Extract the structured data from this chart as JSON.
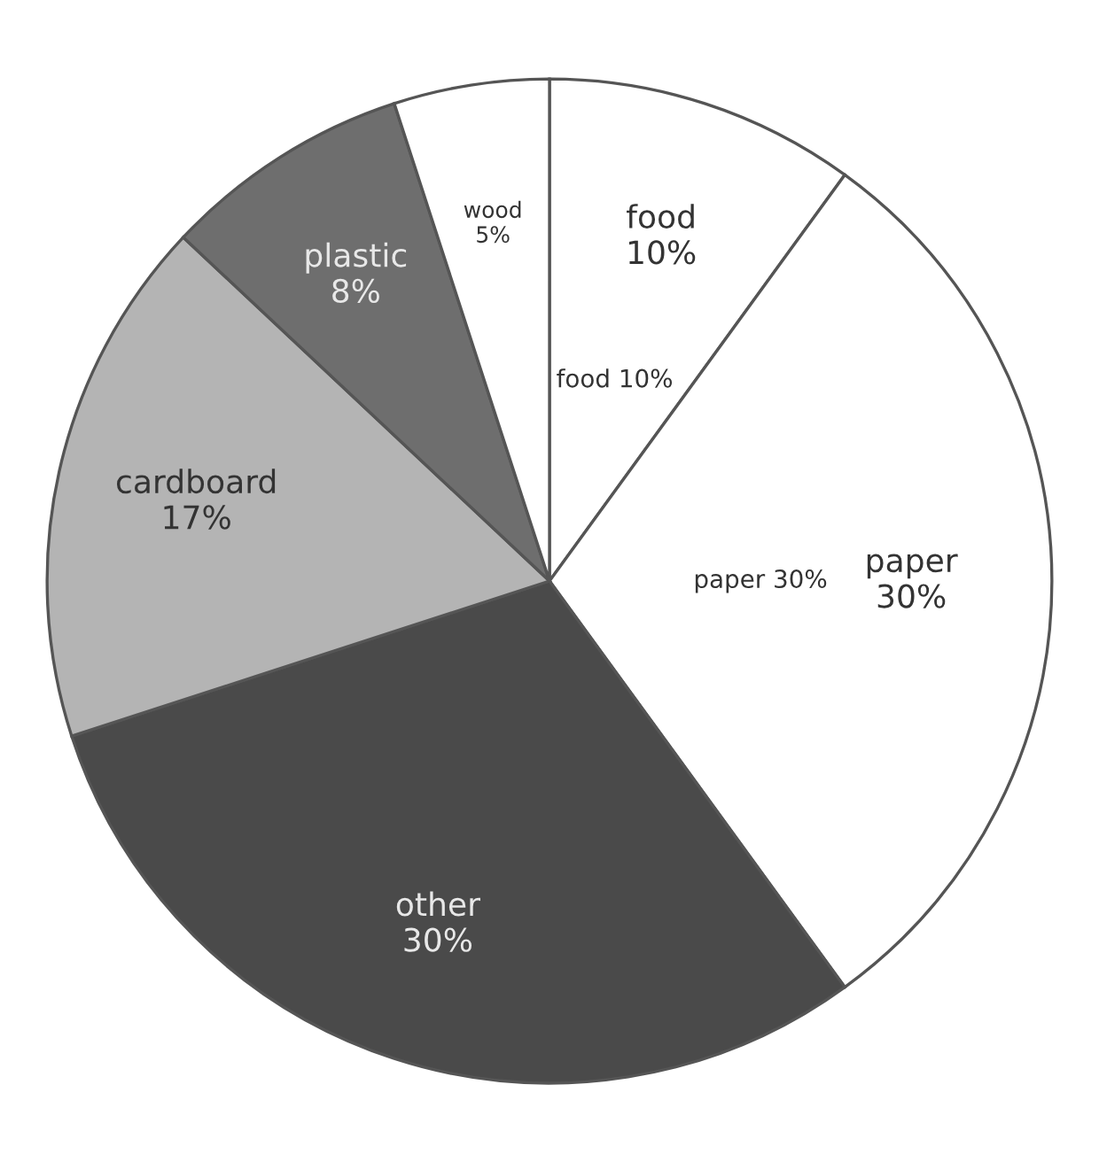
{
  "chart_data": {
    "type": "pie",
    "categories": [
      "food",
      "paper",
      "other",
      "cardboard",
      "plastic",
      "wood"
    ],
    "values": [
      10,
      30,
      30,
      17,
      8,
      5
    ],
    "value_labels": [
      "10%",
      "30%",
      "30%",
      "17%",
      "8%",
      "5%"
    ],
    "colors": [
      "#ffffff",
      "#ffffff",
      "#4a4a4a",
      "#b4b4b4",
      "#6e6e6e",
      "#ffffff"
    ],
    "annotations": [
      "food 10%",
      "paper 30%"
    ]
  }
}
